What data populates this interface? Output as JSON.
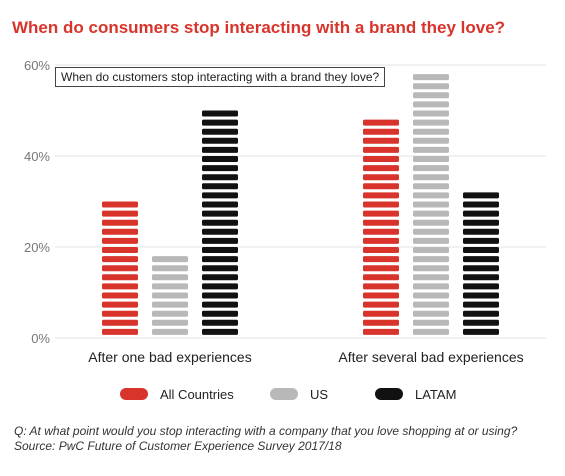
{
  "header": {
    "title": "When do consumers stop interacting with a brand they love?"
  },
  "tooltip": {
    "text": "When do customers stop interacting with a brand they love?"
  },
  "colors": {
    "accent": "#d9342b",
    "All Countries": "#d9342b",
    "US": "#b8b8b8",
    "LATAM": "#111111",
    "grid": "#e3e3e3"
  },
  "chart_data": {
    "type": "bar",
    "title": "When do consumers stop interacting with a brand they love?",
    "categories": [
      "After one bad experiences",
      "After several bad experiences"
    ],
    "series": [
      {
        "name": "All Countries",
        "values": [
          30,
          48
        ]
      },
      {
        "name": "US",
        "values": [
          18,
          58
        ]
      },
      {
        "name": "LATAM",
        "values": [
          50,
          32
        ]
      }
    ],
    "y_ticks": [
      "0%",
      "20%",
      "40%",
      "60%"
    ],
    "ylim": [
      0,
      60
    ],
    "grid": true,
    "legend": "bottom",
    "xlabel": "",
    "ylabel": ""
  },
  "footer": {
    "question": "Q: At what point would you stop interacting with a company that you love shopping at or using?",
    "source": "Source: PwC Future of Customer Experience Survey 2017/18"
  }
}
